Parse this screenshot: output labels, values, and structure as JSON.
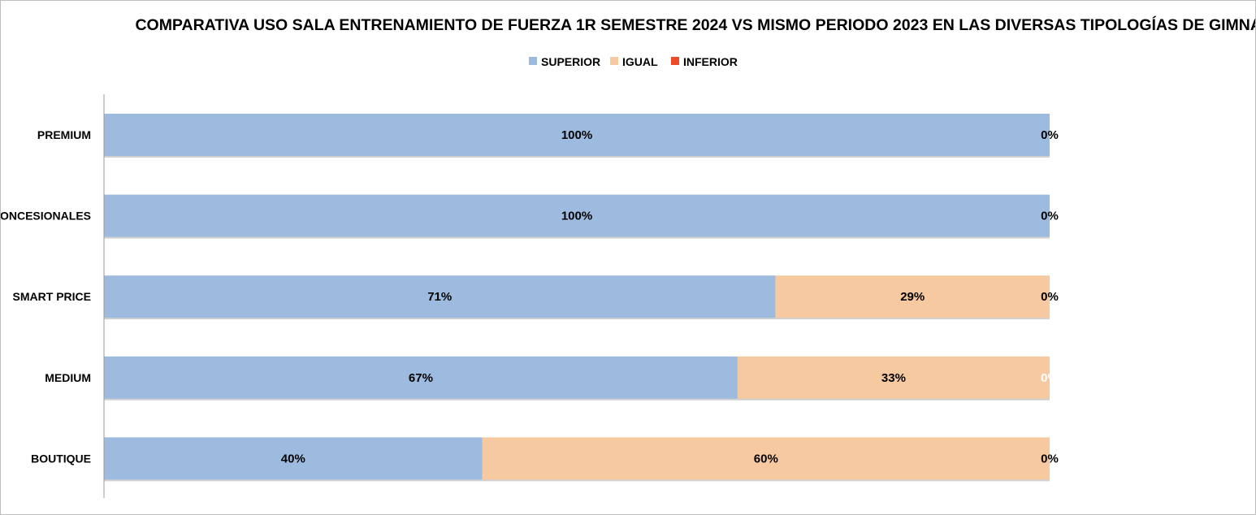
{
  "chart_data": {
    "type": "bar",
    "orientation": "horizontal",
    "stacked": true,
    "title": "COMPARATIVA USO SALA ENTRENAMIENTO DE FUERZA 1R SEMESTRE 2024 VS MISMO PERIODO 2023 EN LAS DIVERSAS TIPOLOGÍAS DE GIMNASIOS",
    "xlabel": "",
    "ylabel": "",
    "xlim": [
      0,
      100
    ],
    "grid": false,
    "legend_position": "top",
    "categories": [
      "PREMIUM",
      "CONCESIONALES",
      "SMART PRICE",
      "MEDIUM",
      "BOUTIQUE"
    ],
    "series": [
      {
        "name": "SUPERIOR",
        "color": "#9dbbdf",
        "values": [
          100,
          100,
          71,
          67,
          40
        ],
        "labels": [
          "100%",
          "100%",
          "71%",
          "67%",
          "40%"
        ]
      },
      {
        "name": "IGUAL",
        "color": "#f7c9a1",
        "values": [
          0,
          0,
          29,
          33,
          60
        ],
        "labels": [
          "",
          "",
          "29%",
          "33%",
          "60%"
        ]
      },
      {
        "name": "INFERIOR",
        "color": "#ee4b2b",
        "values": [
          0,
          0,
          0,
          0,
          0
        ],
        "labels": [
          "0%",
          "0%",
          "0%",
          "0%",
          "0%"
        ],
        "label_colors": [
          "#000000",
          "#000000",
          "#000000",
          "#ffffff",
          "#000000"
        ]
      }
    ]
  }
}
